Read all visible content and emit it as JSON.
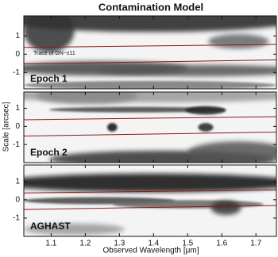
{
  "chart_data": [
    {
      "type": "image",
      "title": "Contamination Model",
      "label": "Epoch 1",
      "label_color": "#8a2fc4",
      "annotation": "Trace of GN−z11",
      "xlim": [
        1.02,
        1.76
      ],
      "ylim": [
        -1.9,
        2.1
      ],
      "yticks": [
        -1,
        0,
        1
      ]
    },
    {
      "type": "image",
      "label": "Epoch 2",
      "label_color": "#2c5a86",
      "ylabel": "Scale [arcsec]",
      "xlim": [
        1.02,
        1.76
      ],
      "ylim": [
        -2,
        1.9
      ],
      "yticks": [
        -1,
        0,
        1
      ]
    },
    {
      "type": "image",
      "label": "AGHAST",
      "label_color": "#4a8a2e",
      "xlabel": "Observed Wavelength [μm]",
      "xlim": [
        1.02,
        1.76
      ],
      "ylim": [
        -2,
        1.9
      ],
      "yticks": [
        -1,
        0,
        1
      ],
      "xticks": [
        1.1,
        1.2,
        1.3,
        1.4,
        1.5,
        1.6,
        1.7
      ]
    }
  ]
}
